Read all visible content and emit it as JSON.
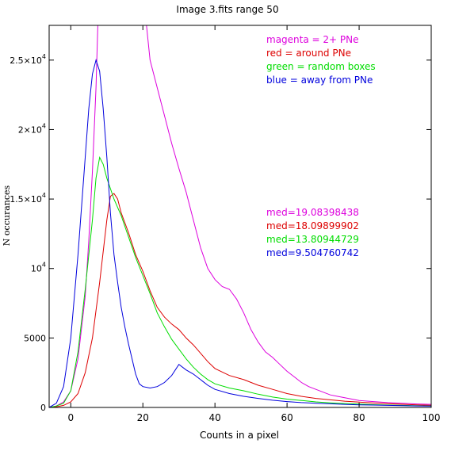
{
  "chart_data": {
    "type": "line",
    "title": "Image 3.fits   range 50",
    "xlabel": "Counts in a pixel",
    "ylabel": "N occurances",
    "xlim": [
      -6,
      100
    ],
    "ylim": [
      0,
      27500
    ],
    "grid": false,
    "legend_placement": "top-right",
    "x_ticks": [
      {
        "value": 0,
        "label": "0"
      },
      {
        "value": 20,
        "label": "20"
      },
      {
        "value": 40,
        "label": "40"
      },
      {
        "value": 60,
        "label": "60"
      },
      {
        "value": 80,
        "label": "80"
      },
      {
        "value": 100,
        "label": "100"
      }
    ],
    "y_ticks": [
      {
        "value": 0,
        "label": "0"
      },
      {
        "value": 5000,
        "label": "5000"
      },
      {
        "value": 10000,
        "mantissa": "10",
        "exponent": "4"
      },
      {
        "value": 15000,
        "mantissa": "1.5×10",
        "exponent": "4"
      },
      {
        "value": 20000,
        "mantissa": "2×10",
        "exponent": "4"
      },
      {
        "value": 25000,
        "mantissa": "2.5×10",
        "exponent": "4"
      }
    ],
    "legend": [
      {
        "text": "magenta = 2+ PNe",
        "color": "#dd00dd"
      },
      {
        "text": "red = around PNe",
        "color": "#dd0000"
      },
      {
        "text": "green = random boxes",
        "color": "#00dd00"
      },
      {
        "text": "blue = away from PNe",
        "color": "#0000dd"
      }
    ],
    "medians": [
      {
        "text": "med=19.08398438",
        "color": "#dd00dd"
      },
      {
        "text": "med=18.09899902",
        "color": "#dd0000"
      },
      {
        "text": "med=13.80944729",
        "color": "#00dd00"
      },
      {
        "text": "med=9.504760742",
        "color": "#0000dd"
      }
    ],
    "series": [
      {
        "color": "#dd00dd",
        "points": [
          [
            -6,
            0
          ],
          [
            -4,
            100
          ],
          [
            -2,
            400
          ],
          [
            0,
            1200
          ],
          [
            2,
            3500
          ],
          [
            4,
            8000
          ],
          [
            5,
            12000
          ],
          [
            6,
            17000
          ],
          [
            7,
            23000
          ],
          [
            7.5,
            27500
          ],
          [
            21,
            27500
          ],
          [
            22,
            25000
          ],
          [
            24,
            23000
          ],
          [
            26,
            21000
          ],
          [
            28,
            19000
          ],
          [
            30,
            17200
          ],
          [
            32,
            15500
          ],
          [
            34,
            13500
          ],
          [
            36,
            11500
          ],
          [
            38,
            10000
          ],
          [
            40,
            9200
          ],
          [
            42,
            8700
          ],
          [
            44,
            8500
          ],
          [
            46,
            7800
          ],
          [
            48,
            6800
          ],
          [
            50,
            5600
          ],
          [
            52,
            4700
          ],
          [
            54,
            4000
          ],
          [
            56,
            3600
          ],
          [
            58,
            3100
          ],
          [
            60,
            2600
          ],
          [
            62,
            2200
          ],
          [
            64,
            1800
          ],
          [
            66,
            1500
          ],
          [
            68,
            1300
          ],
          [
            70,
            1100
          ],
          [
            72,
            900
          ],
          [
            74,
            800
          ],
          [
            76,
            700
          ],
          [
            78,
            600
          ],
          [
            80,
            500
          ],
          [
            84,
            420
          ],
          [
            88,
            350
          ],
          [
            92,
            300
          ],
          [
            96,
            250
          ],
          [
            100,
            220
          ]
        ]
      },
      {
        "color": "#dd0000",
        "points": [
          [
            -6,
            0
          ],
          [
            -4,
            50
          ],
          [
            -2,
            150
          ],
          [
            0,
            400
          ],
          [
            2,
            1000
          ],
          [
            4,
            2500
          ],
          [
            6,
            5000
          ],
          [
            8,
            9000
          ],
          [
            10,
            13500
          ],
          [
            11,
            15200
          ],
          [
            12,
            15400
          ],
          [
            13,
            15000
          ],
          [
            14,
            14000
          ],
          [
            16,
            12600
          ],
          [
            18,
            11000
          ],
          [
            20,
            9800
          ],
          [
            22,
            8400
          ],
          [
            24,
            7200
          ],
          [
            26,
            6500
          ],
          [
            28,
            6000
          ],
          [
            30,
            5600
          ],
          [
            32,
            5000
          ],
          [
            34,
            4500
          ],
          [
            36,
            3900
          ],
          [
            38,
            3300
          ],
          [
            40,
            2800
          ],
          [
            44,
            2300
          ],
          [
            48,
            2000
          ],
          [
            52,
            1600
          ],
          [
            56,
            1300
          ],
          [
            60,
            1000
          ],
          [
            64,
            800
          ],
          [
            68,
            650
          ],
          [
            72,
            550
          ],
          [
            76,
            450
          ],
          [
            80,
            380
          ],
          [
            84,
            320
          ],
          [
            88,
            270
          ],
          [
            92,
            230
          ],
          [
            96,
            190
          ],
          [
            100,
            160
          ]
        ]
      },
      {
        "color": "#00dd00",
        "points": [
          [
            -6,
            0
          ],
          [
            -4,
            100
          ],
          [
            -2,
            300
          ],
          [
            0,
            1200
          ],
          [
            2,
            4000
          ],
          [
            4,
            8500
          ],
          [
            6,
            13500
          ],
          [
            7,
            16500
          ],
          [
            8,
            18000
          ],
          [
            9,
            17500
          ],
          [
            10,
            16500
          ],
          [
            12,
            15000
          ],
          [
            14,
            13800
          ],
          [
            16,
            12300
          ],
          [
            18,
            10800
          ],
          [
            20,
            9500
          ],
          [
            22,
            8200
          ],
          [
            24,
            6800
          ],
          [
            26,
            5800
          ],
          [
            28,
            4900
          ],
          [
            30,
            4200
          ],
          [
            32,
            3500
          ],
          [
            34,
            2900
          ],
          [
            36,
            2400
          ],
          [
            38,
            2000
          ],
          [
            40,
            1700
          ],
          [
            44,
            1400
          ],
          [
            48,
            1200
          ],
          [
            52,
            950
          ],
          [
            56,
            750
          ],
          [
            60,
            600
          ],
          [
            64,
            500
          ],
          [
            68,
            400
          ],
          [
            72,
            330
          ],
          [
            76,
            280
          ],
          [
            80,
            240
          ],
          [
            84,
            200
          ],
          [
            88,
            170
          ],
          [
            92,
            150
          ],
          [
            96,
            120
          ],
          [
            100,
            100
          ]
        ]
      },
      {
        "color": "#0000dd",
        "points": [
          [
            -6,
            0
          ],
          [
            -4,
            300
          ],
          [
            -2,
            1500
          ],
          [
            0,
            5000
          ],
          [
            2,
            11000
          ],
          [
            4,
            18000
          ],
          [
            5,
            21500
          ],
          [
            6,
            24000
          ],
          [
            7,
            25000
          ],
          [
            8,
            24200
          ],
          [
            9,
            21500
          ],
          [
            10,
            18000
          ],
          [
            11,
            14000
          ],
          [
            12,
            11000
          ],
          [
            13,
            9000
          ],
          [
            14,
            7200
          ],
          [
            15,
            5800
          ],
          [
            16,
            4600
          ],
          [
            17,
            3500
          ],
          [
            18,
            2400
          ],
          [
            19,
            1700
          ],
          [
            20,
            1500
          ],
          [
            22,
            1400
          ],
          [
            24,
            1500
          ],
          [
            26,
            1800
          ],
          [
            28,
            2300
          ],
          [
            30,
            3100
          ],
          [
            32,
            2700
          ],
          [
            34,
            2400
          ],
          [
            36,
            2000
          ],
          [
            38,
            1600
          ],
          [
            40,
            1300
          ],
          [
            44,
            1000
          ],
          [
            48,
            800
          ],
          [
            52,
            650
          ],
          [
            56,
            520
          ],
          [
            60,
            420
          ],
          [
            64,
            350
          ],
          [
            68,
            300
          ],
          [
            72,
            260
          ],
          [
            76,
            220
          ],
          [
            80,
            190
          ],
          [
            84,
            170
          ],
          [
            88,
            150
          ],
          [
            92,
            130
          ],
          [
            96,
            110
          ],
          [
            100,
            100
          ]
        ]
      }
    ]
  }
}
